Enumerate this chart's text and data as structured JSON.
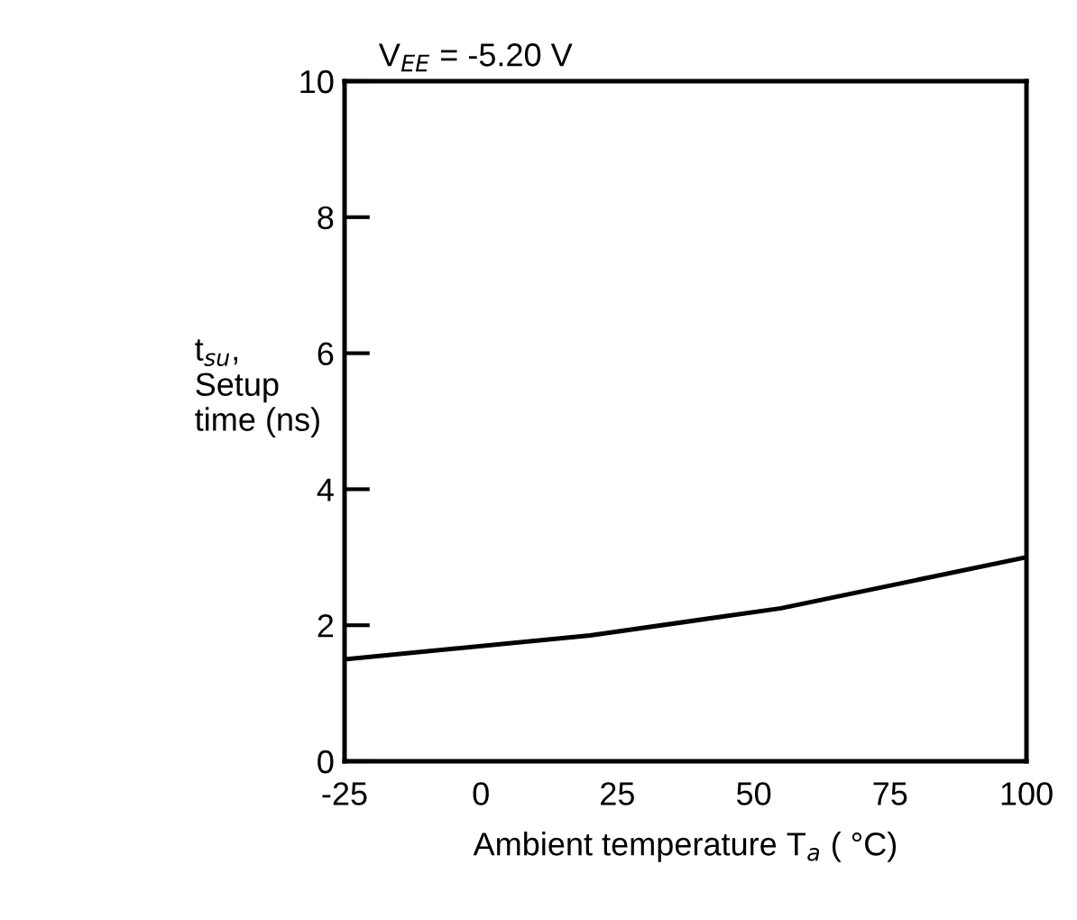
{
  "chart_data": {
    "type": "line",
    "title": "V$_{EE}$ = -5.20 V",
    "xlabel": "Ambient temperature T$_{a}$ ( °C)",
    "ylabel": "t$_{su}$,\nSetup\ntime (ns)",
    "x": [
      -25,
      20,
      55,
      100
    ],
    "series": [
      {
        "color": "#000000",
        "values": [
          1.5,
          1.85,
          2.25,
          3.0
        ]
      }
    ],
    "xlim": [
      -25,
      100
    ],
    "xticks": [
      -25,
      0,
      25,
      50,
      75,
      100
    ],
    "ylim": [
      0,
      10
    ],
    "yticks": [
      0,
      2,
      4,
      6,
      8,
      10
    ],
    "grid": false,
    "marker": "none",
    "line_style": "solid"
  }
}
